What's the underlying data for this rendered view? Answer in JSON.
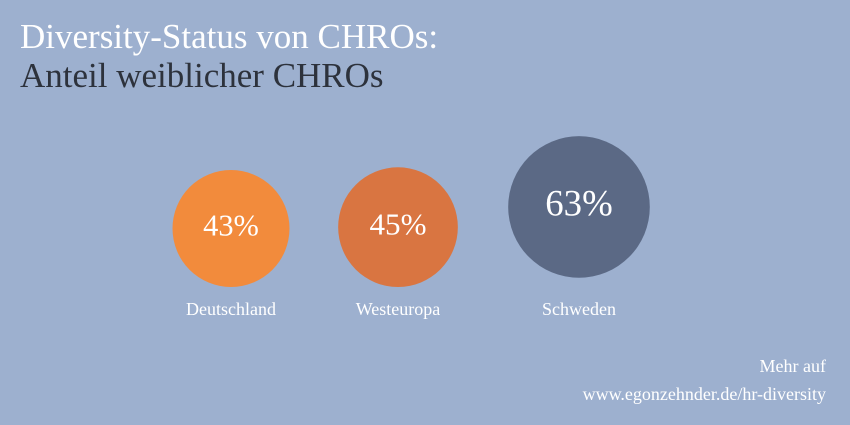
{
  "chart_data": {
    "type": "bubble",
    "title": "Diversity-Status von CHROs:",
    "subtitle": "Anteil weiblicher CHROs",
    "categories": [
      "Deutschland",
      "Westeuropa",
      "Schweden"
    ],
    "values": [
      43,
      45,
      63
    ],
    "value_labels": [
      "43%",
      "45%",
      "63%"
    ],
    "colors": [
      "#f28b3c",
      "#d97541",
      "#5b6985"
    ],
    "annotations": [
      "Mehr auf",
      "www.egonzehnder.de/hr-diversity"
    ]
  }
}
